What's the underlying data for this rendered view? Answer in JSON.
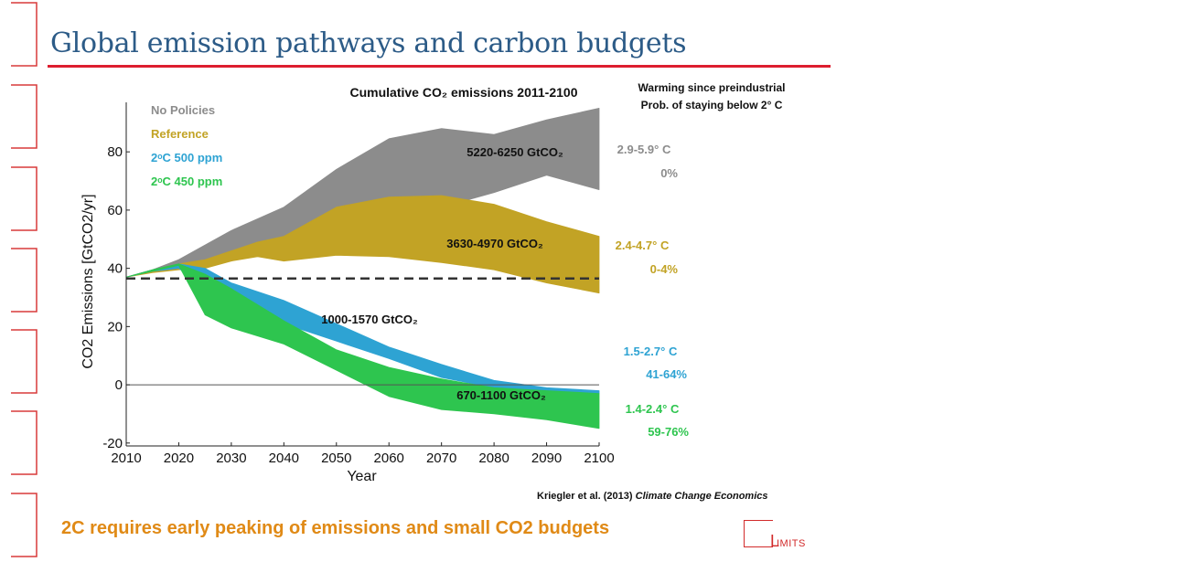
{
  "slide": {
    "title": "Global emission pathways and carbon budgets",
    "footer": "2C requires early peaking of emissions and small CO2 budgets",
    "citation_authors": "Kriegler et al. (2013)",
    "citation_journal": "Climate Change Economics",
    "logo_initial": "L",
    "logo_text": "IMITS",
    "accent_color": "#dd1e2f",
    "title_color": "#2c5b87",
    "footer_color": "#e08a16"
  },
  "chart_data": {
    "type": "area",
    "title": "Cumulative CO₂ emissions 2011-2100",
    "right_header": [
      "Warming since preindustrial",
      "Prob. of staying below 2° C"
    ],
    "xlabel": "Year",
    "ylabel": "CO2 Emissions [GtCO2/yr]",
    "xlim": [
      2010,
      2100
    ],
    "ylim": [
      -21,
      97
    ],
    "xticks": [
      2010,
      2020,
      2030,
      2040,
      2050,
      2060,
      2070,
      2080,
      2090,
      2100
    ],
    "yticks": [
      -20,
      0,
      20,
      40,
      60,
      80
    ],
    "reference_line": {
      "y": 36.5,
      "style": "dashed"
    },
    "series": [
      {
        "name": "No Policies",
        "color": "#8c8c8c",
        "x": [
          2010,
          2015,
          2020,
          2025,
          2030,
          2040,
          2050,
          2060,
          2070,
          2080,
          2090,
          2100
        ],
        "upper": [
          37,
          39.5,
          43,
          48,
          53,
          61,
          74,
          84.5,
          88,
          86,
          91,
          95
        ],
        "lower": [
          37,
          39,
          41,
          42,
          45,
          48,
          52,
          58,
          61,
          66,
          72,
          67
        ],
        "budget": "5220-6250 GtCO₂",
        "warming": "2.9-5.9° C",
        "probability": "0%"
      },
      {
        "name": "Reference",
        "color": "#c2a325",
        "x": [
          2010,
          2015,
          2020,
          2025,
          2030,
          2035,
          2040,
          2050,
          2060,
          2070,
          2080,
          2090,
          2100
        ],
        "upper": [
          37,
          39.5,
          41.5,
          43,
          46,
          49,
          51,
          61,
          64.5,
          65,
          62,
          56,
          51
        ],
        "lower": [
          37,
          38.5,
          39.5,
          40,
          42.5,
          44,
          42.5,
          44.5,
          44,
          42,
          39.5,
          35,
          31.5
        ],
        "budget": "3630-4970 GtCO₂",
        "warming": "2.4-4.7° C",
        "probability": "0-4%"
      },
      {
        "name": "2°C 500 ppm",
        "color": "#2ea3d3",
        "x": [
          2010,
          2015,
          2020,
          2025,
          2030,
          2040,
          2050,
          2060,
          2070,
          2080,
          2090,
          2100
        ],
        "upper": [
          37,
          39.5,
          41.5,
          40,
          35,
          29,
          21,
          13,
          7,
          1.5,
          -1,
          -2
        ],
        "lower": [
          37,
          39,
          40,
          33,
          28,
          21,
          15,
          9,
          2.5,
          -1,
          -2,
          -3
        ],
        "budget": "1000-1570 GtCO₂",
        "warming": "1.5-2.7° C",
        "probability": "41-64%"
      },
      {
        "name": "2°C 450 ppm",
        "color": "#2ec54f",
        "x": [
          2010,
          2015,
          2020,
          2025,
          2030,
          2040,
          2050,
          2060,
          2070,
          2080,
          2090,
          2100
        ],
        "upper": [
          37,
          39.5,
          41.5,
          38,
          33,
          22,
          12,
          6,
          2,
          -1,
          -2,
          -3
        ],
        "lower": [
          37,
          39,
          41,
          24,
          19.5,
          14,
          5,
          -4,
          -8.5,
          -10,
          -12,
          -15
        ],
        "budget": "670-1100 GtCO₂",
        "warming": "1.4-2.4° C",
        "probability": "59-76%"
      }
    ]
  }
}
